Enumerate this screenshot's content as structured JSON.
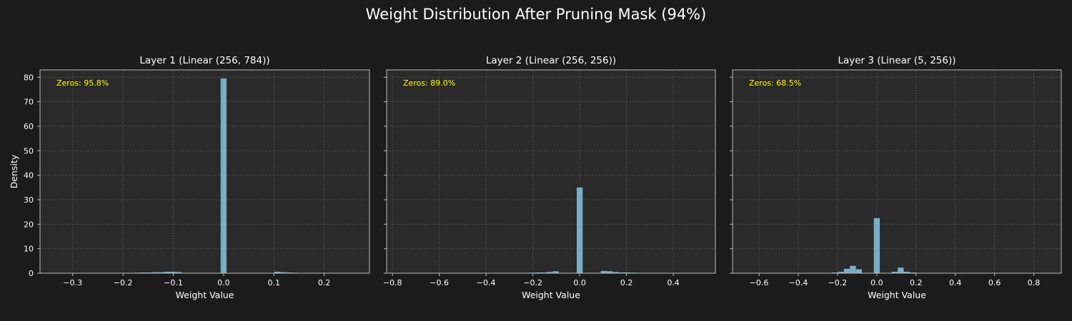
{
  "title": "Weight Distribution After Pruning Mask (94%)",
  "colors": {
    "background": "#1b1b1b",
    "axes_face": "#2a2a2a",
    "bar": "#79adc6",
    "annotation": "#ffff00",
    "grid": "#555555",
    "spine": "#bbbbbb",
    "text": "#ffffff"
  },
  "chart_data": [
    {
      "type": "bar",
      "title": "Layer 1 (Linear (256, 784))",
      "xlabel": "Weight Value",
      "ylabel": "Density",
      "annotation": "Zeros: 95.8%",
      "xlim": [
        -0.365,
        0.29
      ],
      "ylim": [
        0,
        83
      ],
      "xticks": [
        -0.3,
        -0.2,
        -0.1,
        0.0,
        0.1,
        0.2
      ],
      "xtick_labels": [
        "−0.3",
        "−0.2",
        "−0.1",
        "0.0",
        "0.1",
        "0.2"
      ],
      "yticks": [
        0,
        10,
        20,
        30,
        40,
        50,
        60,
        70,
        80
      ],
      "ytick_labels": [
        "0",
        "10",
        "20",
        "30",
        "40",
        "50",
        "60",
        "70",
        "80"
      ],
      "grid": true,
      "bin_width": 0.0118,
      "bins": [
        {
          "x": -0.1776,
          "y": 0.2
        },
        {
          "x": -0.1658,
          "y": 0.3
        },
        {
          "x": -0.154,
          "y": 0.3
        },
        {
          "x": -0.1422,
          "y": 0.4
        },
        {
          "x": -0.1304,
          "y": 0.4
        },
        {
          "x": -0.1186,
          "y": 0.6
        },
        {
          "x": -0.1068,
          "y": 0.6
        },
        {
          "x": -0.095,
          "y": 0.5
        },
        {
          "x": -0.0059,
          "y": 79.5
        },
        {
          "x": 0.101,
          "y": 0.6
        },
        {
          "x": 0.1128,
          "y": 0.4
        },
        {
          "x": 0.1246,
          "y": 0.3
        },
        {
          "x": 0.1364,
          "y": 0.2
        }
      ]
    },
    {
      "type": "bar",
      "title": "Layer 2 (Linear (256, 256))",
      "xlabel": "Weight Value",
      "ylabel": "",
      "annotation": "Zeros: 89.0%",
      "xlim": [
        -0.825,
        0.58
      ],
      "ylim": [
        0,
        83
      ],
      "xticks": [
        -0.8,
        -0.6,
        -0.4,
        -0.2,
        0.0,
        0.2,
        0.4
      ],
      "xtick_labels": [
        "−0.8",
        "−0.6",
        "−0.4",
        "−0.2",
        "0.0",
        "0.2",
        "0.4"
      ],
      "yticks": [
        0,
        10,
        20,
        30,
        40,
        50,
        60,
        70,
        80
      ],
      "ytick_labels": [
        "",
        "",
        "",
        "",
        "",
        "",
        "",
        "",
        ""
      ],
      "grid": true,
      "bin_width": 0.0255,
      "bins": [
        {
          "x": -0.217,
          "y": 0.2
        },
        {
          "x": -0.1915,
          "y": 0.3
        },
        {
          "x": -0.166,
          "y": 0.3
        },
        {
          "x": -0.1405,
          "y": 0.5
        },
        {
          "x": -0.115,
          "y": 0.8
        },
        {
          "x": -0.0125,
          "y": 35.0
        },
        {
          "x": 0.09,
          "y": 0.9
        },
        {
          "x": 0.1155,
          "y": 0.8
        },
        {
          "x": 0.141,
          "y": 0.5
        },
        {
          "x": 0.1665,
          "y": 0.3
        },
        {
          "x": 0.192,
          "y": 0.3
        },
        {
          "x": 0.2175,
          "y": 0.2
        }
      ]
    },
    {
      "type": "bar",
      "title": "Layer 3 (Linear (5, 256))",
      "xlabel": "Weight Value",
      "ylabel": "",
      "annotation": "Zeros: 68.5%",
      "xlim": [
        -0.735,
        0.94
      ],
      "ylim": [
        0,
        83
      ],
      "xticks": [
        -0.6,
        -0.4,
        -0.2,
        0.0,
        0.2,
        0.4,
        0.6,
        0.8
      ],
      "xtick_labels": [
        "−0.6",
        "−0.4",
        "−0.2",
        "0.0",
        "0.2",
        "0.4",
        "0.6",
        "0.8"
      ],
      "yticks": [
        0,
        10,
        20,
        30,
        40,
        50,
        60,
        70,
        80
      ],
      "ytick_labels": [
        "",
        "",
        "",
        "",
        "",
        "",
        "",
        "",
        ""
      ],
      "grid": true,
      "bin_width": 0.0305,
      "bins": [
        {
          "x": -0.2285,
          "y": 0.3
        },
        {
          "x": -0.198,
          "y": 0.6
        },
        {
          "x": -0.1675,
          "y": 1.8
        },
        {
          "x": -0.137,
          "y": 3.0
        },
        {
          "x": -0.1065,
          "y": 1.6
        },
        {
          "x": -0.0152,
          "y": 22.5
        },
        {
          "x": 0.076,
          "y": 0.6
        },
        {
          "x": 0.1065,
          "y": 2.3
        },
        {
          "x": 0.137,
          "y": 0.6
        },
        {
          "x": 0.1675,
          "y": 0.3
        }
      ]
    }
  ]
}
